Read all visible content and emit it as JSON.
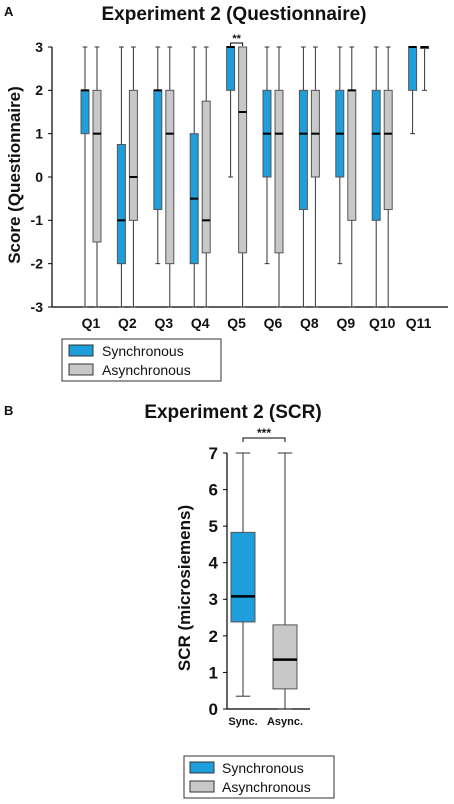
{
  "chart_data": [
    {
      "panel": "A",
      "type": "box",
      "title": "Experiment 2 (Questionnaire)",
      "ylabel": "Score (Questionnaire)",
      "xlabel": "",
      "ylim": [
        -3,
        3
      ],
      "yticks": [
        -3,
        -2,
        -1,
        0,
        1,
        2,
        3
      ],
      "categories": [
        "Q1",
        "Q2",
        "Q3",
        "Q4",
        "Q5",
        "Q6",
        "Q8",
        "Q9",
        "Q10",
        "Q11"
      ],
      "series": [
        {
          "name": "Synchronous",
          "color": "#1e9fdc",
          "boxes": [
            {
              "min": -3,
              "q1": 1,
              "median": 2,
              "q3": 2,
              "max": 3
            },
            {
              "min": -3,
              "q1": -2,
              "median": -1,
              "q3": 0.75,
              "max": 3
            },
            {
              "min": -2,
              "q1": -0.75,
              "median": 2,
              "q3": 2,
              "max": 3
            },
            {
              "min": -3,
              "q1": -2,
              "median": -0.5,
              "q3": 1,
              "max": 3
            },
            {
              "min": 0,
              "q1": 2,
              "median": 3,
              "q3": 3,
              "max": 3
            },
            {
              "min": -2,
              "q1": 0,
              "median": 1,
              "q3": 2,
              "max": 3
            },
            {
              "min": -3,
              "q1": -0.75,
              "median": 1,
              "q3": 2,
              "max": 3
            },
            {
              "min": -2,
              "q1": 0,
              "median": 1,
              "q3": 2,
              "max": 3
            },
            {
              "min": -3,
              "q1": -1,
              "median": 1,
              "q3": 2,
              "max": 3
            },
            {
              "min": 1,
              "q1": 2,
              "median": 3,
              "q3": 3,
              "max": 3
            }
          ]
        },
        {
          "name": "Asynchronous",
          "color": "#c8c8c8",
          "boxes": [
            {
              "min": -3,
              "q1": -1.5,
              "median": 1,
              "q3": 2,
              "max": 3
            },
            {
              "min": -3,
              "q1": -1,
              "median": 0,
              "q3": 2,
              "max": 3
            },
            {
              "min": -3,
              "q1": -2,
              "median": 1,
              "q3": 2,
              "max": 3
            },
            {
              "min": -3,
              "q1": -1.75,
              "median": -1,
              "q3": 1.75,
              "max": 3
            },
            {
              "min": -3,
              "q1": -1.75,
              "median": 1.5,
              "q3": 3,
              "max": 3
            },
            {
              "min": -3,
              "q1": -1.75,
              "median": 1,
              "q3": 2,
              "max": 3
            },
            {
              "min": -3,
              "q1": 0,
              "median": 1,
              "q3": 2,
              "max": 3
            },
            {
              "min": -3,
              "q1": -1,
              "median": 2,
              "q3": 2,
              "max": 3
            },
            {
              "min": -3,
              "q1": -0.75,
              "median": 1,
              "q3": 2,
              "max": 3
            },
            {
              "min": 2,
              "q1": 3,
              "median": 3,
              "q3": 3,
              "max": 3
            }
          ]
        }
      ],
      "annotations": [
        {
          "category": "Q5",
          "text": "**"
        }
      ],
      "legend": {
        "placement": "bottom-left",
        "entries": [
          "Synchronous",
          "Asynchronous"
        ]
      }
    },
    {
      "panel": "B",
      "type": "box",
      "title": "Experiment 2 (SCR)",
      "ylabel": "SCR (microsiemens)",
      "xlabel": "",
      "ylim": [
        0,
        7
      ],
      "yticks": [
        0,
        1,
        2,
        3,
        4,
        5,
        6,
        7
      ],
      "categories": [
        "Sync.",
        "Async."
      ],
      "series": [
        {
          "name": "Synchronous",
          "color": "#1e9fdc",
          "boxes": [
            {
              "min": 0.35,
              "q1": 2.38,
              "median": 3.08,
              "q3": 4.83,
              "max": 7
            }
          ]
        },
        {
          "name": "Asynchronous",
          "color": "#c8c8c8",
          "boxes": [
            {
              "min": 0,
              "q1": 0.55,
              "median": 1.35,
              "q3": 2.3,
              "max": 7
            }
          ]
        }
      ],
      "annotations": [
        {
          "between": [
            "Sync.",
            "Async."
          ],
          "text": "***"
        }
      ],
      "legend": {
        "placement": "bottom-center",
        "entries": [
          "Synchronous",
          "Asynchronous"
        ]
      }
    }
  ]
}
